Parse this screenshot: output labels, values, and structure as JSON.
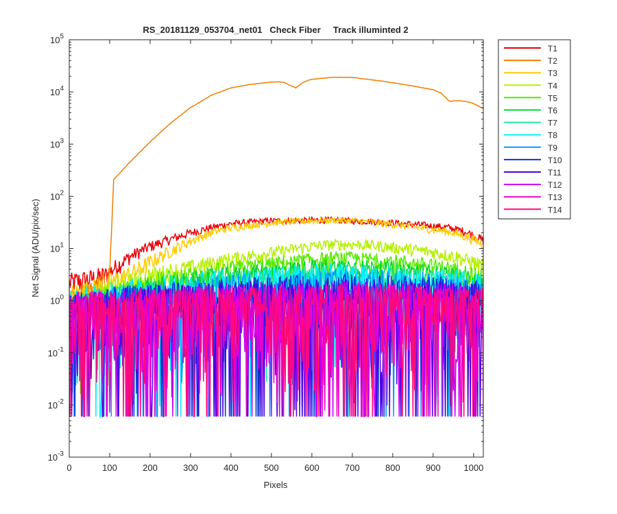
{
  "chart_data": {
    "type": "line",
    "title": "RS_20181129_053704_net01   Check Fiber     Track illuminted 2",
    "xlabel": "Pixels",
    "ylabel": "Net Signal (ADU/pix/sec)",
    "xlim": [
      0,
      1024
    ],
    "ylim": [
      0.001,
      100000
    ],
    "yscale": "log",
    "xticks": [
      0,
      100,
      200,
      300,
      400,
      500,
      600,
      700,
      800,
      900,
      1000
    ],
    "yticks": [
      {
        "base": "10",
        "exp": "-3",
        "value": 0.001
      },
      {
        "base": "10",
        "exp": "-2",
        "value": 0.01
      },
      {
        "base": "10",
        "exp": "-1",
        "value": 0.1
      },
      {
        "base": "10",
        "exp": "0",
        "value": 1
      },
      {
        "base": "10",
        "exp": "1",
        "value": 10
      },
      {
        "base": "10",
        "exp": "2",
        "value": 100
      },
      {
        "base": "10",
        "exp": "3",
        "value": 1000
      },
      {
        "base": "10",
        "exp": "4",
        "value": 10000
      },
      {
        "base": "10",
        "exp": "5",
        "value": 100000
      }
    ],
    "grid": false,
    "legend_position": "outside-right",
    "x": [
      0,
      50,
      95,
      100,
      110,
      150,
      200,
      250,
      300,
      350,
      400,
      450,
      500,
      530,
      545,
      560,
      580,
      600,
      650,
      700,
      750,
      800,
      850,
      900,
      920,
      940,
      960,
      980,
      1000,
      1024
    ],
    "series": [
      {
        "name": "T1",
        "color": "#e8000b",
        "values": [
          2.2,
          2.6,
          3.2,
          3.5,
          4.2,
          7,
          11,
          15,
          20,
          25,
          30,
          32,
          34,
          34,
          34,
          34,
          34,
          35,
          35,
          34,
          33,
          31,
          29,
          27,
          26,
          25,
          23,
          21,
          18,
          14
        ]
      },
      {
        "name": "T2",
        "color": "#f07d00",
        "values": [
          1.2,
          1.6,
          2.5,
          3.5,
          210,
          450,
          1100,
          2500,
          5000,
          8500,
          12000,
          14000,
          15500,
          15500,
          13500,
          12000,
          15500,
          17500,
          19000,
          19000,
          17000,
          15000,
          13000,
          11000,
          9500,
          6600,
          6800,
          6600,
          6000,
          4800
        ]
      },
      {
        "name": "T3",
        "color": "#ffcc00",
        "values": [
          1.3,
          1.6,
          2.0,
          2.2,
          2.4,
          3.2,
          5.5,
          9,
          14,
          20,
          25,
          28,
          31,
          32,
          33,
          33,
          33,
          34,
          35,
          34,
          32,
          29,
          26,
          23,
          22,
          21,
          19,
          17,
          15,
          12
        ]
      },
      {
        "name": "T4",
        "color": "#b5f000",
        "values": [
          1.0,
          1.2,
          1.5,
          1.7,
          1.8,
          2.2,
          3.0,
          3.6,
          4.3,
          5.2,
          6.3,
          7.3,
          8.3,
          9.0,
          9.5,
          10,
          10.5,
          11,
          12,
          12,
          11.5,
          10.5,
          9.5,
          8.5,
          8,
          7.5,
          7,
          6,
          5.5,
          4.5
        ]
      },
      {
        "name": "T5",
        "color": "#55e800",
        "values": [
          0.9,
          1.0,
          1.2,
          1.3,
          1.4,
          1.7,
          2.2,
          2.6,
          3.0,
          3.5,
          4.0,
          4.5,
          5.0,
          5.3,
          5.5,
          5.7,
          5.9,
          6.1,
          6.5,
          6.5,
          6.2,
          5.8,
          5.2,
          4.6,
          4.4,
          4.1,
          3.8,
          3.4,
          3.0,
          2.6
        ]
      },
      {
        "name": "T6",
        "color": "#00d435",
        "values": [
          0.8,
          0.9,
          1.0,
          1.1,
          1.2,
          1.4,
          1.7,
          2.0,
          2.3,
          2.7,
          3.0,
          3.3,
          3.6,
          3.8,
          4.0,
          4.1,
          4.2,
          4.3,
          4.5,
          4.5,
          4.3,
          4.0,
          3.7,
          3.3,
          3.2,
          3.0,
          2.8,
          2.6,
          2.3,
          2.0
        ]
      },
      {
        "name": "T7",
        "color": "#1ee6a0",
        "values": [
          0.8,
          0.9,
          1.0,
          1.0,
          1.1,
          1.3,
          1.5,
          1.7,
          1.9,
          2.1,
          2.3,
          2.5,
          2.7,
          2.8,
          2.9,
          3.0,
          3.0,
          3.1,
          3.2,
          3.2,
          3.1,
          2.9,
          2.7,
          2.5,
          2.4,
          2.3,
          2.2,
          2.0,
          1.8,
          1.6
        ]
      },
      {
        "name": "T8",
        "color": "#00f0ff",
        "values": [
          0.8,
          0.9,
          0.9,
          1.0,
          1.0,
          1.2,
          1.3,
          1.5,
          1.6,
          1.8,
          1.9,
          2.0,
          2.2,
          2.2,
          2.3,
          2.3,
          2.3,
          2.4,
          2.4,
          2.4,
          2.3,
          2.2,
          2.1,
          2.0,
          1.9,
          1.9,
          1.8,
          1.7,
          1.6,
          1.5
        ]
      },
      {
        "name": "T9",
        "color": "#0a96ff",
        "values": [
          0.7,
          0.8,
          0.8,
          0.9,
          0.9,
          1.0,
          1.1,
          1.2,
          1.3,
          1.4,
          1.5,
          1.6,
          1.7,
          1.7,
          1.8,
          1.8,
          1.8,
          1.8,
          1.9,
          1.9,
          1.8,
          1.8,
          1.7,
          1.6,
          1.6,
          1.5,
          1.5,
          1.4,
          1.3,
          1.2
        ]
      },
      {
        "name": "T10",
        "color": "#0a32d2",
        "values": [
          0.7,
          0.7,
          0.8,
          0.8,
          0.8,
          0.9,
          1.0,
          1.0,
          1.1,
          1.2,
          1.2,
          1.3,
          1.3,
          1.4,
          1.4,
          1.4,
          1.4,
          1.4,
          1.5,
          1.5,
          1.4,
          1.4,
          1.4,
          1.3,
          1.3,
          1.3,
          1.2,
          1.2,
          1.1,
          1.0
        ]
      },
      {
        "name": "T11",
        "color": "#4b00e6",
        "values": [
          0.7,
          0.7,
          0.7,
          0.8,
          0.8,
          0.8,
          0.9,
          0.9,
          1.0,
          1.0,
          1.1,
          1.1,
          1.1,
          1.2,
          1.2,
          1.2,
          1.2,
          1.2,
          1.2,
          1.2,
          1.2,
          1.2,
          1.1,
          1.1,
          1.1,
          1.1,
          1.0,
          1.0,
          1.0,
          0.9
        ]
      },
      {
        "name": "T12",
        "color": "#c800f0",
        "values": [
          0.7,
          0.7,
          0.7,
          0.7,
          0.8,
          0.8,
          0.8,
          0.9,
          0.9,
          0.9,
          1.0,
          1.0,
          1.0,
          1.0,
          1.0,
          1.1,
          1.1,
          1.1,
          1.1,
          1.1,
          1.1,
          1.0,
          1.0,
          1.0,
          1.0,
          1.0,
          1.0,
          0.9,
          0.9,
          0.9
        ]
      },
      {
        "name": "T13",
        "color": "#f000c8",
        "values": [
          0.6,
          0.7,
          0.7,
          0.7,
          0.7,
          0.8,
          0.8,
          0.8,
          0.8,
          0.9,
          0.9,
          0.9,
          0.9,
          1.0,
          1.0,
          1.0,
          1.0,
          1.0,
          1.0,
          1.0,
          1.0,
          1.0,
          0.9,
          0.9,
          0.9,
          0.9,
          0.9,
          0.9,
          0.8,
          0.8
        ]
      },
      {
        "name": "T14",
        "color": "#ff0a78",
        "values": [
          0.6,
          0.7,
          0.7,
          0.7,
          0.7,
          0.7,
          0.8,
          0.8,
          0.8,
          0.8,
          0.9,
          0.9,
          0.9,
          0.9,
          0.9,
          0.9,
          0.9,
          0.9,
          1.0,
          1.0,
          0.9,
          0.9,
          0.9,
          0.9,
          0.9,
          0.8,
          0.8,
          0.8,
          0.8,
          0.8
        ]
      }
    ]
  }
}
